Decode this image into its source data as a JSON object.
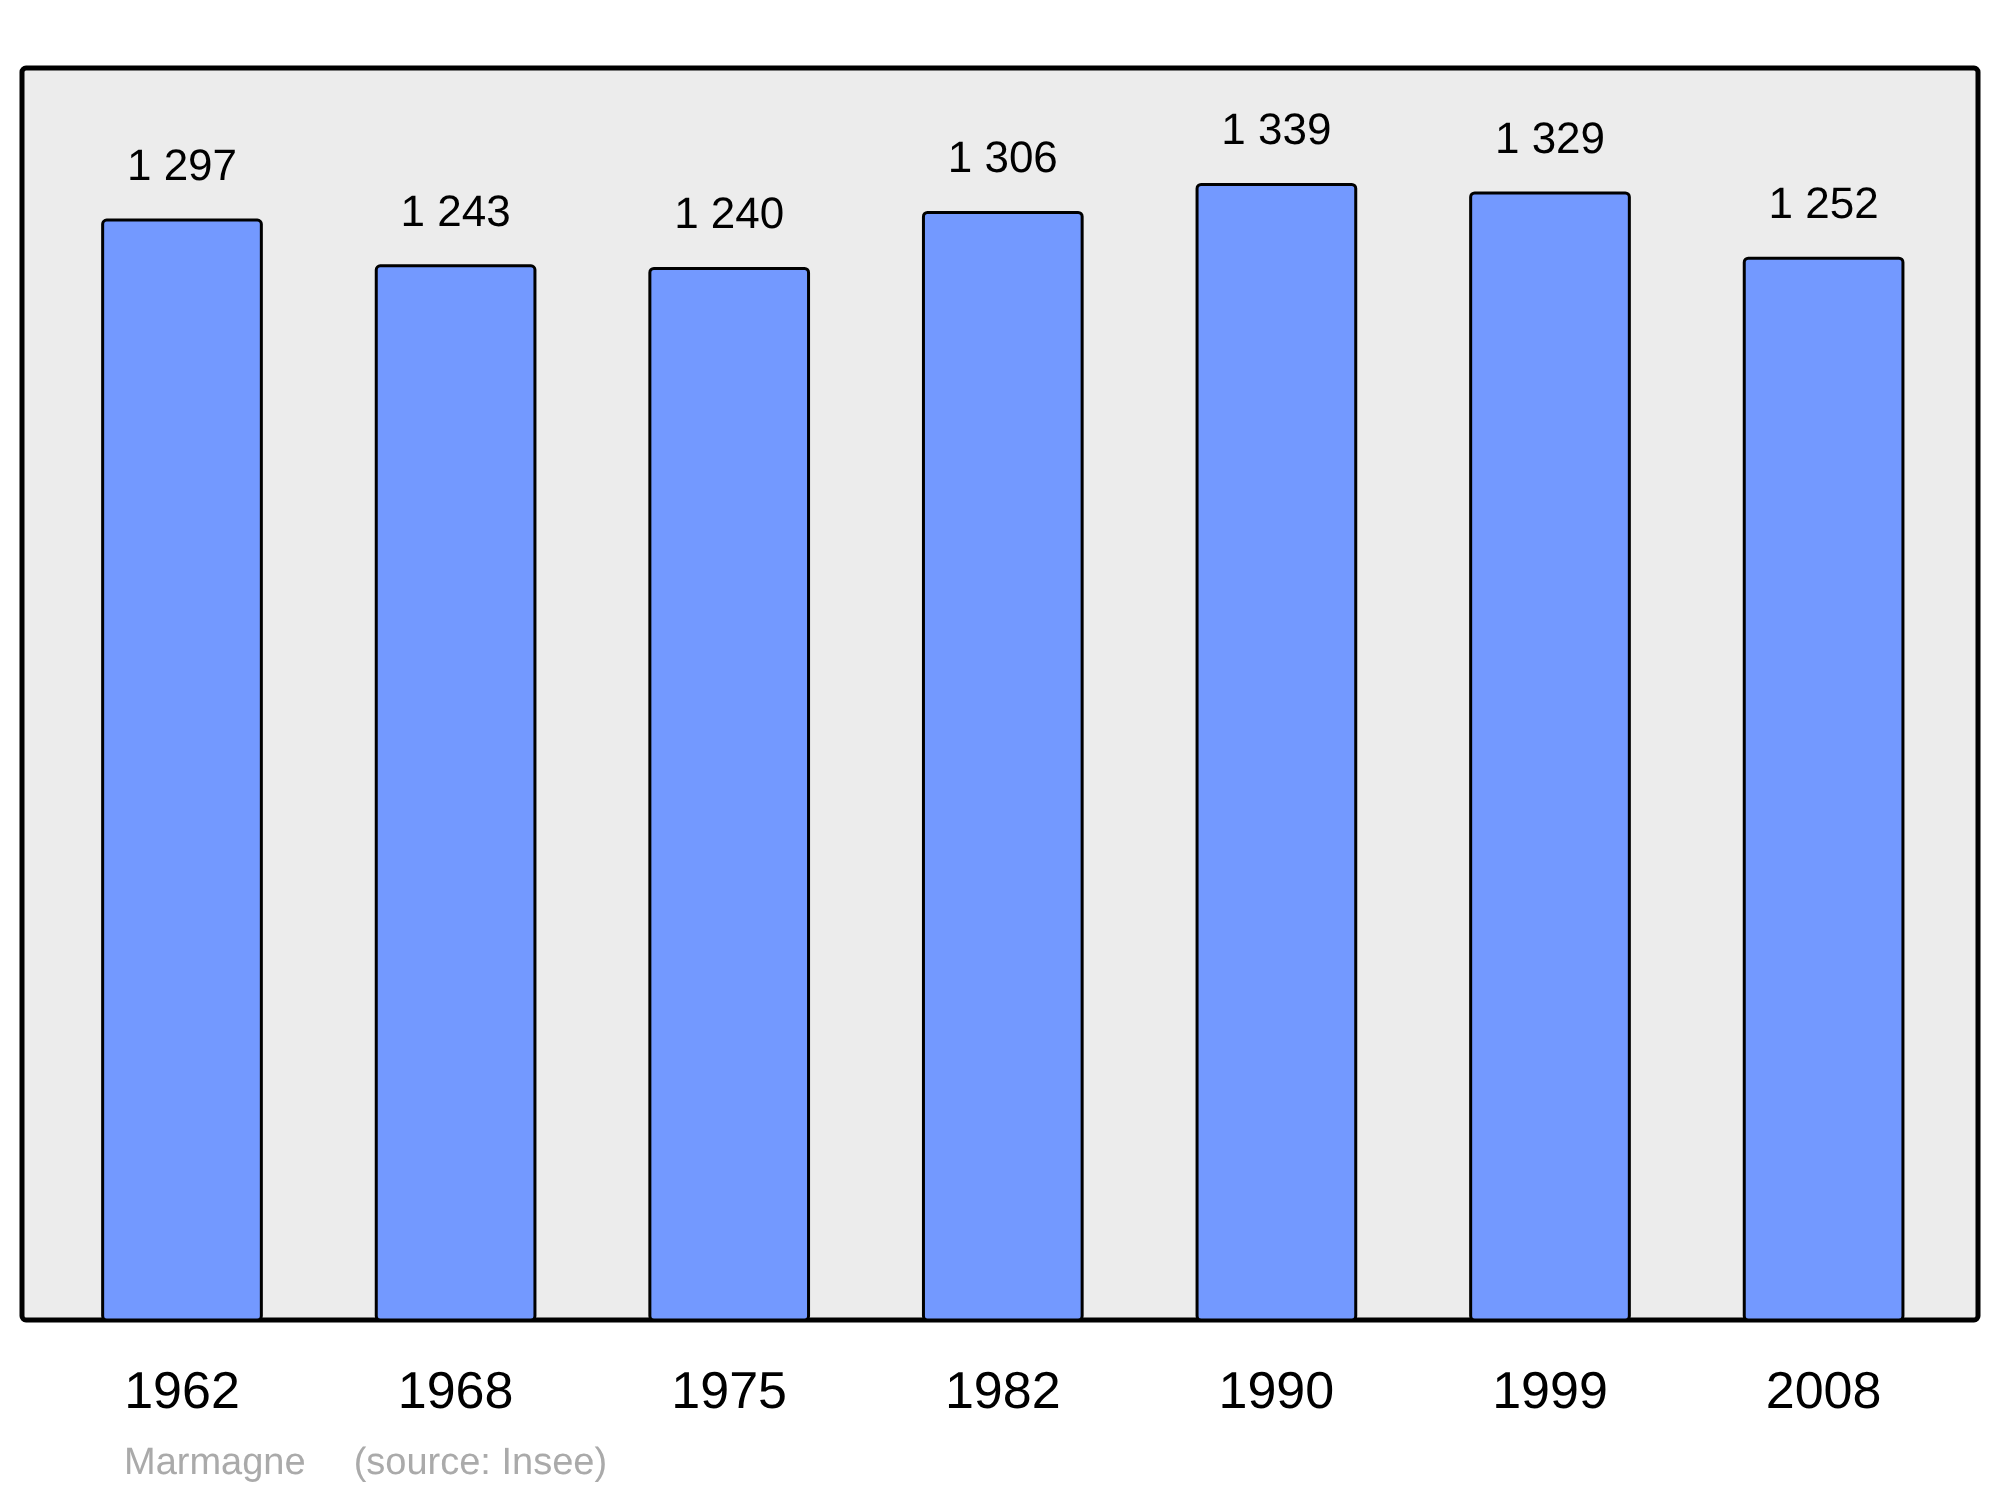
{
  "chart_data": {
    "type": "bar",
    "categories": [
      "1962",
      "1968",
      "1975",
      "1982",
      "1990",
      "1999",
      "2008"
    ],
    "values": [
      1297,
      1243,
      1240,
      1306,
      1339,
      1329,
      1252
    ],
    "value_labels": [
      "1 297",
      "1 243",
      "1 240",
      "1 306",
      "1 339",
      "1 329",
      "1 252"
    ],
    "color": "#7399ff",
    "annotations": [
      "Marmagne",
      "(source: Insee)"
    ]
  }
}
